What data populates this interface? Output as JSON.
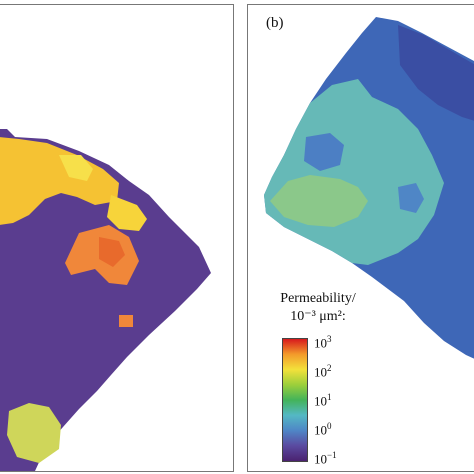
{
  "panels": [
    {
      "id": "a",
      "label": "",
      "colors": {
        "background": "#5a3d8f",
        "patch_high": "#f5c233",
        "patch_peak": "#f0873a",
        "patch_mid": "#cfd65a"
      }
    },
    {
      "id": "b",
      "label": "(b)",
      "colors": {
        "background": "#3e67b7",
        "patch_light": "#66b9b7",
        "patch_green": "#8bc88a",
        "patch_dark": "#3a4ea3"
      }
    }
  ],
  "legend": {
    "title_line1": "Permeability/",
    "title_line2": "10⁻³ μm²:",
    "ticks": [
      {
        "base": "10",
        "exp": "3"
      },
      {
        "base": "10",
        "exp": "2"
      },
      {
        "base": "10",
        "exp": "1"
      },
      {
        "base": "10",
        "exp": "0"
      },
      {
        "base": "10",
        "exp": "−1"
      }
    ],
    "colorscale": [
      "#d7191c",
      "#f39a2b",
      "#f3e13b",
      "#9ccf3b",
      "#43b35a",
      "#54b8c4",
      "#4f86c6",
      "#5a4aa0",
      "#4b2270"
    ]
  }
}
